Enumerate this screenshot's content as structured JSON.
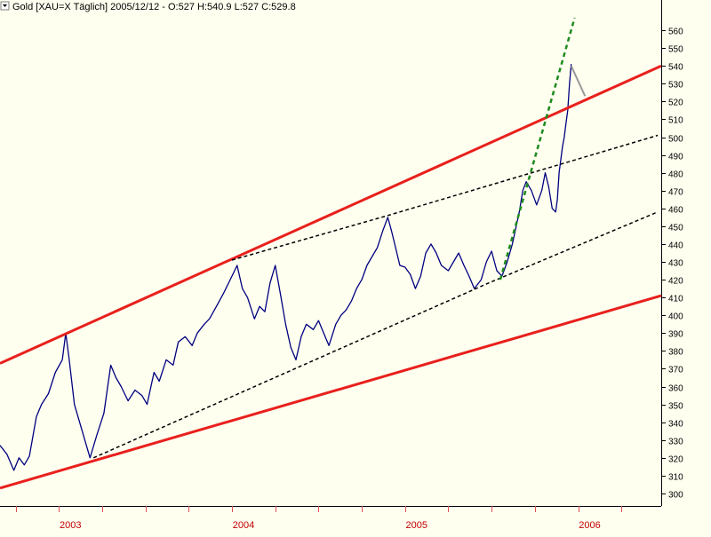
{
  "header": {
    "title": "Gold [XAU=X  Täglich] 2005/12/12 - O:527 H:540.9 L:527 C:529.8"
  },
  "colors": {
    "background": "#fffff0",
    "price_line": "#000080",
    "channel": "#e8201c",
    "trend_dashed": "#000000",
    "acceleration": "#1e8a1e",
    "arrow": "#999999",
    "axis_text": "#000000",
    "year_text": "#c00000",
    "year_tick": "#e05050",
    "grid": "#d0d0d0"
  },
  "chart_data": {
    "type": "line",
    "title": "Gold [XAU=X  Täglich] 2005/12/12 - O:527 H:540.9 L:527 C:529.8",
    "xlabel": "",
    "ylabel": "",
    "ylim": [
      293,
      569
    ],
    "y_ticks": [
      300,
      310,
      320,
      330,
      340,
      350,
      360,
      370,
      380,
      390,
      400,
      410,
      420,
      430,
      440,
      450,
      460,
      470,
      480,
      490,
      500,
      510,
      520,
      530,
      540,
      550,
      560
    ],
    "x_ticks": [
      {
        "label": "2003",
        "t": 2003.0
      },
      {
        "label": "2004",
        "t": 2004.0
      },
      {
        "label": "2005",
        "t": 2005.0
      },
      {
        "label": "2006",
        "t": 2006.0
      }
    ],
    "xlim": [
      2002.66,
      2006.48
    ],
    "y_scale": "linear",
    "grid": true,
    "legend": "none",
    "series": [
      {
        "style": "price",
        "points": [
          [
            2002.66,
            327
          ],
          [
            2002.7,
            322
          ],
          [
            2002.74,
            313
          ],
          [
            2002.77,
            320
          ],
          [
            2002.8,
            316
          ],
          [
            2002.83,
            321
          ],
          [
            2002.87,
            343
          ],
          [
            2002.9,
            350
          ],
          [
            2002.94,
            356
          ],
          [
            2002.98,
            368
          ],
          [
            2003.02,
            375
          ],
          [
            2003.04,
            390
          ],
          [
            2003.06,
            375
          ],
          [
            2003.09,
            350
          ],
          [
            2003.12,
            340
          ],
          [
            2003.15,
            330
          ],
          [
            2003.18,
            320
          ],
          [
            2003.22,
            333
          ],
          [
            2003.26,
            345
          ],
          [
            2003.3,
            372
          ],
          [
            2003.33,
            365
          ],
          [
            2003.36,
            360
          ],
          [
            2003.4,
            352
          ],
          [
            2003.44,
            358
          ],
          [
            2003.48,
            355
          ],
          [
            2003.51,
            350
          ],
          [
            2003.55,
            368
          ],
          [
            2003.58,
            363
          ],
          [
            2003.62,
            375
          ],
          [
            2003.66,
            372
          ],
          [
            2003.69,
            385
          ],
          [
            2003.73,
            388
          ],
          [
            2003.77,
            383
          ],
          [
            2003.8,
            390
          ],
          [
            2003.84,
            395
          ],
          [
            2003.87,
            398
          ],
          [
            2003.91,
            405
          ],
          [
            2003.95,
            412
          ],
          [
            2003.98,
            418
          ],
          [
            2004.01,
            424
          ],
          [
            2004.03,
            428
          ],
          [
            2004.06,
            415
          ],
          [
            2004.09,
            410
          ],
          [
            2004.13,
            398
          ],
          [
            2004.16,
            405
          ],
          [
            2004.19,
            402
          ],
          [
            2004.22,
            418
          ],
          [
            2004.25,
            428
          ],
          [
            2004.28,
            412
          ],
          [
            2004.31,
            395
          ],
          [
            2004.34,
            382
          ],
          [
            2004.37,
            375
          ],
          [
            2004.4,
            388
          ],
          [
            2004.43,
            395
          ],
          [
            2004.47,
            392
          ],
          [
            2004.5,
            397
          ],
          [
            2004.53,
            390
          ],
          [
            2004.56,
            383
          ],
          [
            2004.6,
            395
          ],
          [
            2004.63,
            400
          ],
          [
            2004.66,
            403
          ],
          [
            2004.69,
            408
          ],
          [
            2004.72,
            415
          ],
          [
            2004.75,
            420
          ],
          [
            2004.78,
            428
          ],
          [
            2004.81,
            433
          ],
          [
            2004.84,
            438
          ],
          [
            2004.87,
            447
          ],
          [
            2004.9,
            455
          ],
          [
            2004.92,
            448
          ],
          [
            2004.94,
            440
          ],
          [
            2004.97,
            428
          ],
          [
            2005.0,
            427
          ],
          [
            2005.03,
            423
          ],
          [
            2005.06,
            415
          ],
          [
            2005.09,
            422
          ],
          [
            2005.12,
            435
          ],
          [
            2005.15,
            440
          ],
          [
            2005.18,
            435
          ],
          [
            2005.21,
            428
          ],
          [
            2005.25,
            425
          ],
          [
            2005.28,
            430
          ],
          [
            2005.31,
            435
          ],
          [
            2005.34,
            428
          ],
          [
            2005.37,
            422
          ],
          [
            2005.4,
            415
          ],
          [
            2005.44,
            420
          ],
          [
            2005.47,
            430
          ],
          [
            2005.5,
            436
          ],
          [
            2005.53,
            425
          ],
          [
            2005.56,
            422
          ],
          [
            2005.59,
            430
          ],
          [
            2005.62,
            440
          ],
          [
            2005.66,
            458
          ],
          [
            2005.68,
            470
          ],
          [
            2005.7,
            475
          ],
          [
            2005.73,
            470
          ],
          [
            2005.76,
            462
          ],
          [
            2005.79,
            470
          ],
          [
            2005.81,
            480
          ],
          [
            2005.83,
            472
          ],
          [
            2005.85,
            460
          ],
          [
            2005.87,
            458
          ],
          [
            2005.88,
            465
          ],
          [
            2005.89,
            480
          ],
          [
            2005.91,
            495
          ],
          [
            2005.92,
            500
          ],
          [
            2005.93,
            508
          ],
          [
            2005.94,
            515
          ],
          [
            2005.95,
            530
          ],
          [
            2005.96,
            541
          ]
        ]
      },
      {
        "style": "channel",
        "points": [
          [
            2002.66,
            373
          ],
          [
            2006.48,
            540
          ]
        ]
      },
      {
        "style": "channel",
        "points": [
          [
            2002.66,
            303
          ],
          [
            2006.48,
            411
          ]
        ]
      },
      {
        "style": "dashed",
        "points": [
          [
            2004.0,
            431
          ],
          [
            2004.9,
            456
          ],
          [
            2006.46,
            501
          ]
        ]
      },
      {
        "style": "dashed",
        "points": [
          [
            2003.2,
            320
          ],
          [
            2005.48,
            418
          ],
          [
            2006.46,
            458
          ]
        ]
      },
      {
        "style": "acceleration",
        "points": [
          [
            2005.55,
            420
          ],
          [
            2005.98,
            567
          ]
        ]
      },
      {
        "style": "arrow",
        "points": [
          [
            2005.96,
            540
          ],
          [
            2006.04,
            523
          ]
        ]
      }
    ]
  }
}
